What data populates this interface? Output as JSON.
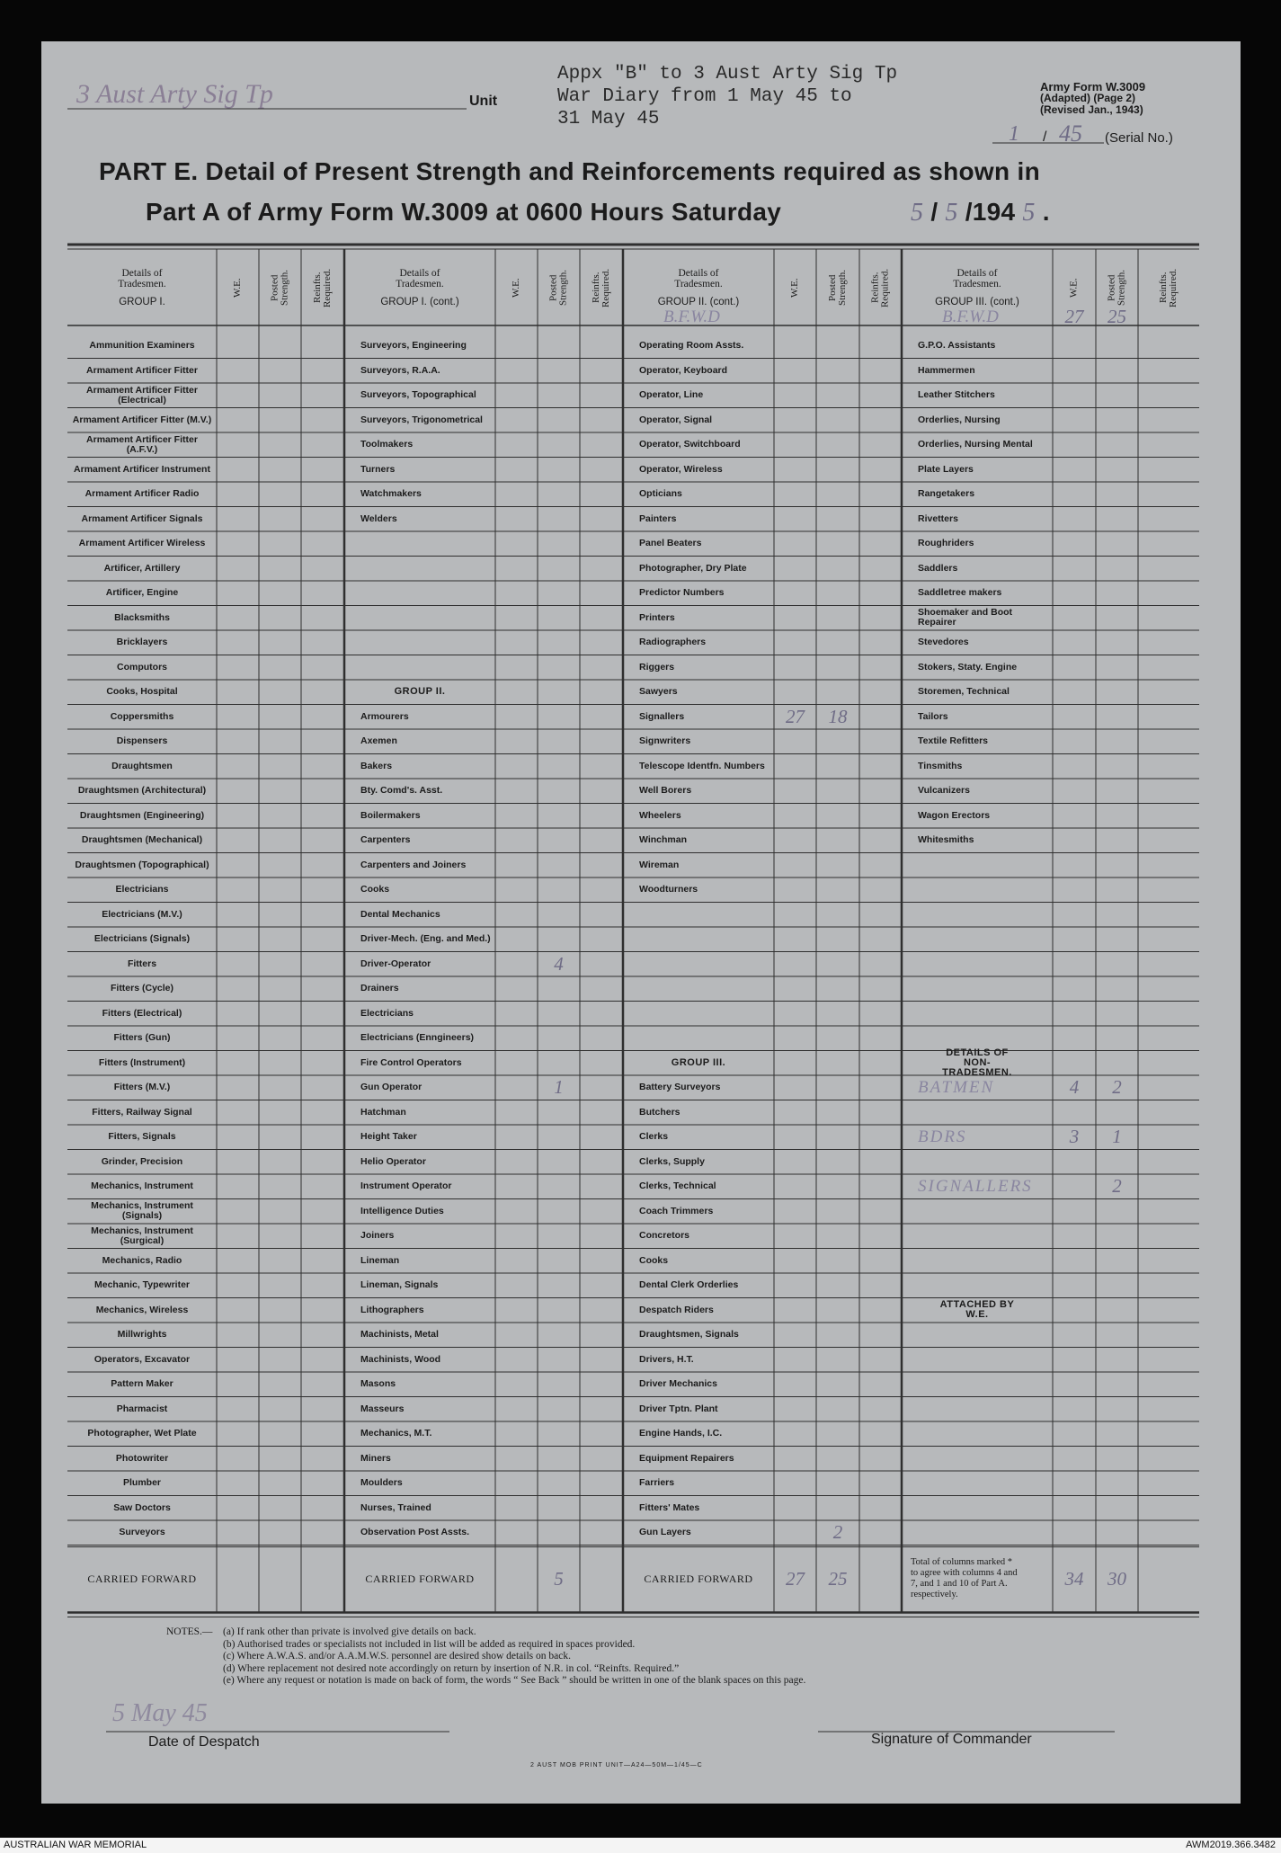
{
  "header": {
    "unit_handwritten": "3 Aust Arty Sig Tp",
    "unit_label": "Unit",
    "typed_note": [
      "Appx \"B\" to 3 Aust Arty Sig Tp",
      "War Diary from 1 May 45 to",
      "31 May 45"
    ],
    "form_id": [
      "Army Form W.3009",
      "(Adapted)  (Page 2)",
      "(Revised Jan., 1943)"
    ],
    "serial_number": "1",
    "serial_separator": "/",
    "serial_year": "45",
    "serial_label": "(Serial No.)"
  },
  "title": {
    "line1": "PART E.  Detail of Present Strength and Reinforcements required as shown in",
    "line2": "Part A of Army Form W.3009 at 0600 Hours Saturday",
    "date_parts": [
      {
        "text": "5",
        "handwritten": true
      },
      {
        "text": "/",
        "handwritten": false
      },
      {
        "text": "5",
        "handwritten": true
      },
      {
        "text": "/194",
        "handwritten": false
      },
      {
        "text": "5",
        "handwritten": true
      },
      {
        "text": ".",
        "handwritten": false
      }
    ]
  },
  "table": {
    "column_headers": [
      "W.E.",
      "Posted Strength.",
      "Reinfts. Required."
    ],
    "groups": [
      {
        "details": "Details of Tradesmen.",
        "group": "GROUP I.",
        "rows": [
          "Ammunition Examiners",
          "Armament Artificer Fitter",
          "Armament Artificer Fitter (Electrical)",
          "Armament Artificer Fitter (M.V.)",
          "Armament Artificer Fitter (A.F.V.)",
          "Armament Artificer Instrument",
          "Armament Artificer Radio",
          "Armament Artificer Signals",
          "Armament Artificer Wireless",
          "Artificer, Artillery",
          "Artificer, Engine",
          "Blacksmiths",
          "Bricklayers",
          "Computors",
          "Cooks, Hospital",
          "Coppersmiths",
          "Dispensers",
          "Draughtsmen",
          "Draughtsmen (Architectural)",
          "Draughtsmen (Engineering)",
          "Draughtsmen (Mechanical)",
          "Draughtsmen (Topographical)",
          "Electricians",
          "Electricians (M.V.)",
          "Electricians (Signals)",
          "Fitters",
          "Fitters (Cycle)",
          "Fitters (Electrical)",
          "Fitters (Gun)",
          "Fitters (Instrument)",
          "Fitters (M.V.)",
          "Fitters, Railway Signal",
          "Fitters, Signals",
          "Grinder, Precision",
          "Mechanics, Instrument",
          "Mechanics, Instrument (Signals)",
          "Mechanics, Instrument (Surgical)",
          "Mechanics, Radio",
          "Mechanic, Typewriter",
          "Mechanics, Wireless",
          "Millwrights",
          "Operators, Excavator",
          "Pattern Maker",
          "Pharmacist",
          "Photographer, Wet Plate",
          "Photowriter",
          "Plumber",
          "Saw Doctors",
          "Surveyors"
        ],
        "carried_forward": {
          "label": "CARRIED FORWARD"
        }
      },
      {
        "details": "Details of Tradesmen.",
        "group": "GROUP I. (cont.)",
        "rows": [
          "Surveyors, Engineering",
          "Surveyors, R.A.A.",
          "Surveyors, Topographical",
          "Surveyors, Trigonometrical",
          "Toolmakers",
          "Turners",
          "Watchmakers",
          "Welders",
          null,
          null,
          null,
          null,
          null,
          null,
          {
            "heading": "GROUP II."
          },
          "Armourers",
          "Axemen",
          "Bakers",
          "Bty. Comd's. Asst.",
          "Boilermakers",
          "Carpenters",
          "Carpenters and Joiners",
          "Cooks",
          "Dental Mechanics",
          "Driver-Mech. (Eng. and Med.)",
          {
            "label": "Driver-Operator",
            "posted": "4"
          },
          "Drainers",
          "Electricians",
          "Electricians (Enngineers)",
          "Fire Control Operators",
          {
            "label": "Gun Operator",
            "posted": "1"
          },
          "Hatchman",
          "Height Taker",
          "Helio Operator",
          "Instrument Operator",
          "Intelligence Duties",
          "Joiners",
          "Lineman",
          "Lineman, Signals",
          "Lithographers",
          "Machinists, Metal",
          "Machinists, Wood",
          "Masons",
          "Masseurs",
          "Mechanics, M.T.",
          "Miners",
          "Moulders",
          "Nurses, Trained",
          "Observation Post Assts."
        ],
        "carried_forward": {
          "label": "CARRIED FORWARD",
          "posted": "5"
        }
      },
      {
        "details": "Details of Tradesmen.",
        "group": "GROUP II. (cont.)",
        "brought_forward": {
          "label": "B.F.W.D"
        },
        "rows": [
          "Operating Room Assts.",
          "Operator, Keyboard",
          "Operator, Line",
          "Operator, Signal",
          "Operator, Switchboard",
          "Operator, Wireless",
          "Opticians",
          "Painters",
          "Panel Beaters",
          "Photographer, Dry Plate",
          "Predictor Numbers",
          "Printers",
          "Radiographers",
          "Riggers",
          "Sawyers",
          {
            "label": "Signallers",
            "we": "27",
            "posted": "18"
          },
          "Signwriters",
          "Telescope Identfn. Numbers",
          "Well Borers",
          "Wheelers",
          "Winchman",
          "Wireman",
          "Woodturners",
          null,
          null,
          null,
          null,
          null,
          null,
          {
            "heading": "GROUP III."
          },
          "Battery Surveyors",
          "Butchers",
          "Clerks",
          "Clerks, Supply",
          "Clerks, Technical",
          "Coach Trimmers",
          "Concretors",
          "Cooks",
          "Dental Clerk Orderlies",
          "Despatch Riders",
          "Draughtsmen, Signals",
          "Drivers, H.T.",
          "Driver Mechanics",
          "Driver Tptn. Plant",
          "Engine Hands, I.C.",
          "Equipment Repairers",
          "Farriers",
          "Fitters' Mates",
          {
            "label": "Gun Layers",
            "posted": "2"
          }
        ],
        "carried_forward": {
          "label": "CARRIED FORWARD",
          "we": "27",
          "posted": "25"
        }
      },
      {
        "details": "Details of Tradesmen.",
        "group": "GROUP III. (cont.)",
        "brought_forward": {
          "label": "B.F.W.D",
          "we": "27",
          "posted": "25"
        },
        "rows": [
          "G.P.O. Assistants",
          "Hammermen",
          "Leather Stitchers",
          "Orderlies, Nursing",
          "Orderlies, Nursing Mental",
          "Plate Layers",
          "Rangetakers",
          "Rivetters",
          "Roughriders",
          "Saddlers",
          "Saddletree makers",
          "Shoemaker and Boot Repairer",
          "Stevedores",
          "Stokers, Staty. Engine",
          "Storemen, Technical",
          "Tailors",
          "Textile Refitters",
          "Tinsmiths",
          "Vulcanizers",
          "Wagon Erectors",
          "Whitesmiths",
          null,
          null,
          null,
          null,
          null,
          null,
          null,
          null,
          {
            "heading": "DETAILS OF NON-TRADESMEN."
          },
          {
            "label": "BATMEN",
            "handwritten": true,
            "we": "4",
            "posted": "2"
          },
          null,
          {
            "label": "BDRS",
            "handwritten": true,
            "we": "3",
            "posted": "1"
          },
          null,
          {
            "label": "SIGNALLERS",
            "handwritten": true,
            "posted": "2"
          },
          null,
          null,
          null,
          null,
          {
            "heading": "ATTACHED BY W.E."
          },
          null,
          null,
          null,
          null,
          null,
          null,
          null,
          null,
          null
        ],
        "carried_forward": {
          "label": "Total of columns marked * to agree with columns 4 and 7, and 1 and 10 of Part A. respectively.",
          "we": "34",
          "posted": "30"
        }
      }
    ]
  },
  "notes": {
    "heading": "NOTES.—",
    "items": [
      "(a)  If rank other than private is involved give details on back.",
      "(b)  Authorised trades or specialists not included in list will be added as required in spaces provided.",
      "(c)  Where A.W.A.S. and/or A.A.M.W.S. personnel are desired show details on back.",
      "(d)  Where replacement not desired note accordingly on return by insertion of N.R. in col. “Reinfts. Required.”",
      "(e)  Where any request or notation is made on back of form, the words “ See Back ” should be written in one of the blank spaces on this page."
    ]
  },
  "footer": {
    "date_handwritten": "5 May 45",
    "date_label": "Date of Despatch",
    "signature_label": "Signature of Commander",
    "print_code": "2  AUST MOB PRINT UNIT—A24—50M—1/45—C"
  },
  "archive": {
    "left": "AUSTRALIAN WAR MEMORIAL",
    "right": "AWM2019.366.3482"
  }
}
